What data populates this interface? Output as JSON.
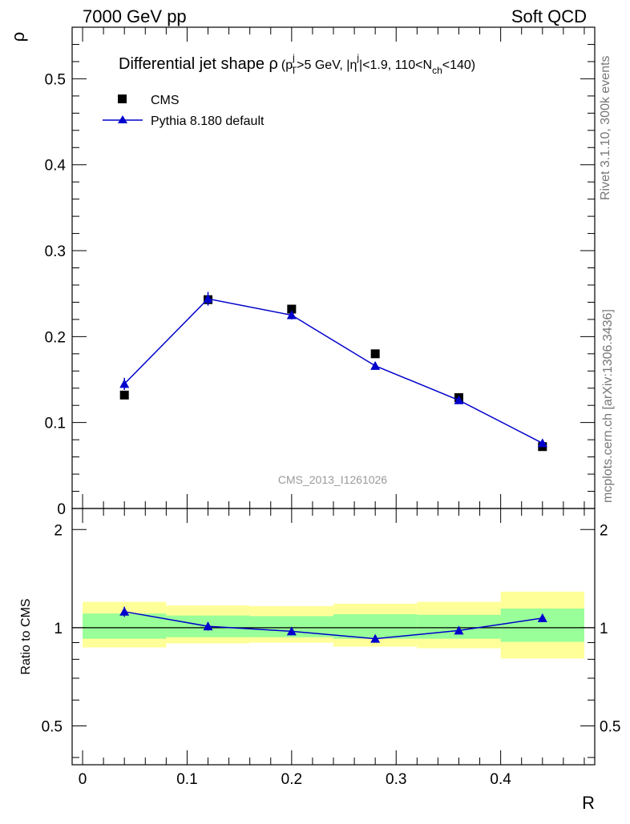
{
  "header": {
    "left": "7000 GeV pp",
    "right": "Soft QCD"
  },
  "side_labels": {
    "rivet": "Rivet 3.1.10,  300k events",
    "mcplots": "mcplots.cern.ch [arXiv:1306.3436]"
  },
  "chart_data": [
    {
      "type": "scatter",
      "title_parts": {
        "main": "Differential jet shape ",
        "rho": "ρ",
        "p": "(p",
        "pt_sub": "T",
        "pt_sup": "j",
        "gt5": ">5 GeV, |",
        "eta": "η",
        "eta_sup": "j",
        "eta_cut": "|<1.9, 110<N",
        "nch_sub": "ch",
        "nch_cut": "<140)"
      },
      "ylabel": "ρ",
      "xlabel": "",
      "xlim": [
        -0.01,
        0.49
      ],
      "ylim": [
        0.0,
        0.56
      ],
      "yticks": [
        0,
        0.1,
        0.2,
        0.3,
        0.4,
        0.5
      ],
      "ytick_labels": [
        "0",
        "0.1",
        "0.2",
        "0.3",
        "0.4",
        "0.5"
      ],
      "analysis_label": "CMS_2013_I1261026",
      "legend": {
        "placement": "top-left",
        "entries": [
          "CMS",
          "Pythia 8.180 default"
        ]
      },
      "series": [
        {
          "name": "CMS",
          "marker": "square",
          "color": "#000000",
          "x": [
            0.04,
            0.12,
            0.2,
            0.28,
            0.36,
            0.44
          ],
          "y": [
            0.132,
            0.243,
            0.232,
            0.18,
            0.129,
            0.072
          ]
        },
        {
          "name": "Pythia 8.180 default",
          "marker": "triangle",
          "color": "#0000cc",
          "x": [
            0.04,
            0.12,
            0.2,
            0.28,
            0.36,
            0.44
          ],
          "y": [
            0.145,
            0.244,
            0.225,
            0.166,
            0.126,
            0.076
          ],
          "yerr": [
            0.007,
            0.008,
            0.005,
            0.004,
            0.003,
            0.002
          ]
        }
      ]
    },
    {
      "type": "scatter",
      "ylabel": "Ratio to CMS",
      "xlabel": "R",
      "xlim": [
        -0.01,
        0.49
      ],
      "ylim": [
        0.38,
        2.32
      ],
      "log_y": true,
      "yticks": [
        0.5,
        1,
        2
      ],
      "ytick_labels": [
        "0.5",
        "1",
        "2"
      ],
      "xticks": [
        0,
        0.1,
        0.2,
        0.3,
        0.4
      ],
      "xtick_labels": [
        "0",
        "0.1",
        "0.2",
        "0.3",
        "0.4"
      ],
      "reference_line": 1,
      "bands": {
        "bin_edges": [
          0,
          0.08,
          0.16,
          0.24,
          0.32,
          0.4,
          0.48
        ],
        "yellow": {
          "color": "#ffff99",
          "low": [
            0.87,
            0.895,
            0.9,
            0.875,
            0.865,
            0.805
          ],
          "high": [
            1.2,
            1.17,
            1.165,
            1.185,
            1.2,
            1.29
          ]
        },
        "green": {
          "color": "#99ff99",
          "low": [
            0.925,
            0.935,
            0.935,
            0.925,
            0.925,
            0.905
          ],
          "high": [
            1.105,
            1.09,
            1.085,
            1.1,
            1.095,
            1.145
          ]
        }
      },
      "series": [
        {
          "name": "Pythia 8.180 default",
          "marker": "triangle",
          "color": "#0000cc",
          "x": [
            0.04,
            0.12,
            0.2,
            0.28,
            0.36,
            0.44
          ],
          "y": [
            1.12,
            1.01,
            0.975,
            0.925,
            0.98,
            1.07
          ],
          "yerr": [
            0.04,
            0.03,
            0.02,
            0.02,
            0.02,
            0.03
          ]
        }
      ]
    }
  ]
}
